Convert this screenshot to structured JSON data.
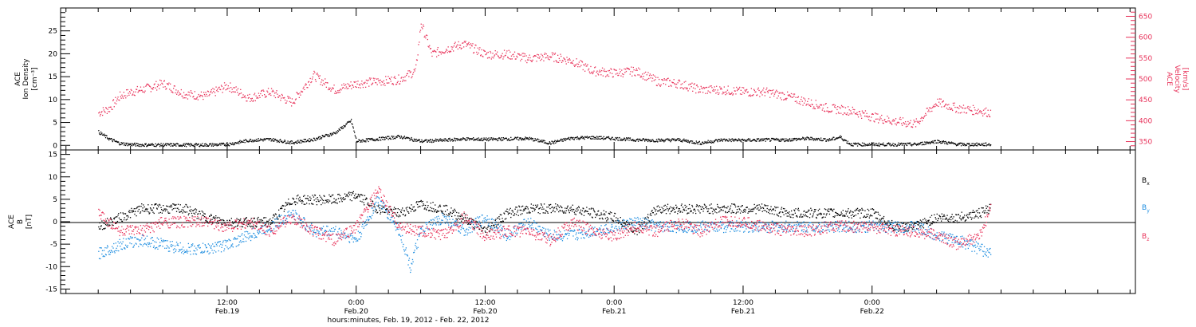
{
  "chart_data": [
    {
      "type": "scatter",
      "panel": "top",
      "ylabel_left": [
        "ACE",
        "Ion Density",
        "[cm⁻³]"
      ],
      "ylabel_right": [
        "ACE",
        "Velocity",
        "[km/s]"
      ],
      "y_left": {
        "range": [
          -1,
          30
        ],
        "ticks": [
          0,
          5,
          10,
          15,
          20,
          25
        ],
        "tick_labels": [
          "0",
          "5",
          "10",
          "15",
          "20",
          "25"
        ]
      },
      "y_right": {
        "range": [
          330,
          670
        ],
        "ticks": [
          350,
          400,
          450,
          500,
          550,
          600,
          650
        ],
        "tick_labels": [
          "350",
          "400",
          "450",
          "500",
          "550",
          "600",
          "650"
        ]
      },
      "series": [
        {
          "name": "Ion Density",
          "color": "#000000",
          "axis": "left",
          "x_hours": [
            0,
            1,
            2,
            3,
            4,
            6,
            8,
            10,
            12,
            14,
            16,
            18,
            20,
            22,
            23.5,
            24,
            26,
            28,
            30,
            32,
            34,
            36,
            38,
            40,
            42,
            44,
            46,
            48,
            50,
            52,
            54,
            56,
            58,
            60,
            62,
            64,
            66,
            68,
            69,
            70,
            72,
            74,
            76,
            78,
            80,
            82,
            83
          ],
          "y": [
            3,
            1.5,
            0.5,
            0.3,
            0.2,
            0.2,
            0.2,
            0.2,
            0.3,
            1.2,
            1.4,
            0.7,
            1.4,
            2.8,
            5.5,
            1,
            1.5,
            2,
            1,
            1.2,
            1.5,
            1.4,
            1.5,
            1.6,
            0.6,
            1.7,
            1.8,
            1.6,
            1.3,
            1.2,
            1.3,
            0.6,
            1.3,
            1.2,
            1.3,
            1.3,
            1.6,
            1.3,
            1.9,
            0.3,
            0.3,
            0.3,
            0.3,
            1,
            0.3,
            0.3,
            0.3
          ]
        },
        {
          "name": "Velocity",
          "color": "#e8325a",
          "axis": "right",
          "x_hours": [
            0,
            1,
            2,
            3,
            4,
            6,
            8,
            10,
            12,
            14,
            16,
            18,
            20,
            22,
            24,
            26,
            28,
            29.5,
            30,
            31,
            32,
            34,
            36,
            38,
            40,
            42,
            44,
            46,
            48,
            50,
            52,
            54,
            56,
            58,
            60,
            62,
            64,
            66,
            68,
            70,
            72,
            73,
            74,
            76,
            78,
            80,
            82,
            83
          ],
          "y": [
            420,
            430,
            460,
            470,
            475,
            490,
            465,
            460,
            485,
            455,
            470,
            445,
            510,
            475,
            490,
            495,
            500,
            520,
            635,
            560,
            570,
            585,
            560,
            560,
            550,
            555,
            545,
            520,
            515,
            520,
            495,
            490,
            475,
            475,
            470,
            470,
            460,
            445,
            430,
            425,
            410,
            405,
            400,
            393,
            445,
            430,
            425,
            420
          ]
        }
      ]
    },
    {
      "type": "scatter",
      "panel": "bottom",
      "ylabel_left": [
        "ACE",
        "B",
        "[nT]"
      ],
      "y_left": {
        "range": [
          -16,
          16
        ],
        "ticks": [
          -15,
          -10,
          -5,
          0,
          5,
          10,
          15
        ],
        "tick_labels": [
          "-15",
          "-10",
          "-5",
          "0",
          "5",
          "10",
          "15"
        ]
      },
      "legend_position": "right",
      "series": [
        {
          "name": "Bx",
          "color": "#000000",
          "x_hours": [
            0,
            2,
            4,
            6,
            8,
            10,
            12,
            14,
            16,
            18,
            20,
            22,
            24,
            26,
            28,
            30,
            32,
            34,
            36,
            38,
            40,
            42,
            44,
            46,
            48,
            50,
            52,
            54,
            56,
            58,
            60,
            62,
            64,
            66,
            68,
            70,
            72,
            74,
            76,
            78,
            80,
            82,
            83
          ],
          "y": [
            -1,
            1,
            3,
            3,
            3,
            1,
            0,
            0,
            0,
            5,
            5,
            5,
            6,
            3,
            2,
            4,
            3,
            1,
            -2,
            2,
            3,
            3,
            3,
            2,
            1,
            -2,
            3,
            3,
            3,
            3,
            3,
            3,
            2,
            2,
            2,
            2,
            2,
            -1,
            -1,
            1,
            1,
            2,
            3
          ]
        },
        {
          "name": "By",
          "color": "#1f8ee0",
          "x_hours": [
            0,
            2,
            4,
            6,
            8,
            10,
            12,
            14,
            16,
            18,
            20,
            22,
            24,
            26,
            28,
            29,
            30,
            32,
            34,
            36,
            38,
            40,
            42,
            44,
            46,
            48,
            50,
            52,
            54,
            56,
            58,
            60,
            62,
            64,
            66,
            68,
            70,
            72,
            74,
            76,
            78,
            80,
            82,
            83
          ],
          "y": [
            -7,
            -5,
            -4,
            -5,
            -6,
            -6,
            -5,
            -3,
            -1,
            2,
            -2,
            -2,
            -4,
            5,
            -2,
            -10,
            -2,
            1,
            -2,
            1,
            -3,
            0,
            -3,
            -3,
            -2,
            -1,
            0,
            -1,
            -1,
            -1,
            -1,
            -1,
            -1,
            -1,
            -1,
            -1,
            -1,
            -1,
            -1,
            -1,
            -3,
            -4,
            -6,
            -7
          ]
        },
        {
          "name": "Bz",
          "color": "#e8325a",
          "x_hours": [
            0,
            2,
            4,
            6,
            8,
            10,
            12,
            14,
            16,
            18,
            20,
            22,
            24,
            26,
            28,
            30,
            32,
            34,
            36,
            38,
            40,
            42,
            44,
            46,
            48,
            50,
            52,
            54,
            56,
            58,
            60,
            62,
            64,
            66,
            68,
            70,
            72,
            74,
            76,
            78,
            80,
            82,
            83
          ],
          "y": [
            2,
            -2,
            -2,
            0,
            0,
            0,
            -1,
            0,
            -2,
            1,
            -2,
            -4,
            -1,
            7,
            -1,
            -2,
            -3,
            1,
            -3,
            -2,
            -2,
            -4,
            0,
            -2,
            -3,
            -1,
            -2,
            0,
            -2,
            0,
            0,
            -1,
            -2,
            -2,
            -1,
            -1,
            -1,
            -2,
            -2,
            -3,
            -5,
            -3,
            3
          ]
        }
      ]
    }
  ],
  "x_axis": {
    "range_hours": [
      -3.5,
      96.5
    ],
    "major_hours": [
      12,
      24,
      36,
      48,
      60,
      72
    ],
    "time_labels": [
      "12:00",
      "0:00",
      "12:00",
      "0:00",
      "12:00",
      "0:00"
    ],
    "date_labels": [
      "Feb.19",
      "Feb.20",
      "Feb.20",
      "Feb.21",
      "Feb.21",
      "Feb.22"
    ],
    "xlabel": "hours:minutes, Feb. 19, 2012 - Feb. 22, 2012"
  },
  "legend": {
    "bx_label": "B",
    "bx_sub": "x",
    "by_label": "B",
    "by_sub": "y",
    "bz_label": "B",
    "bz_sub": "z",
    "bx_color": "#000000",
    "by_color": "#1f8ee0",
    "bz_color": "#e8325a"
  }
}
